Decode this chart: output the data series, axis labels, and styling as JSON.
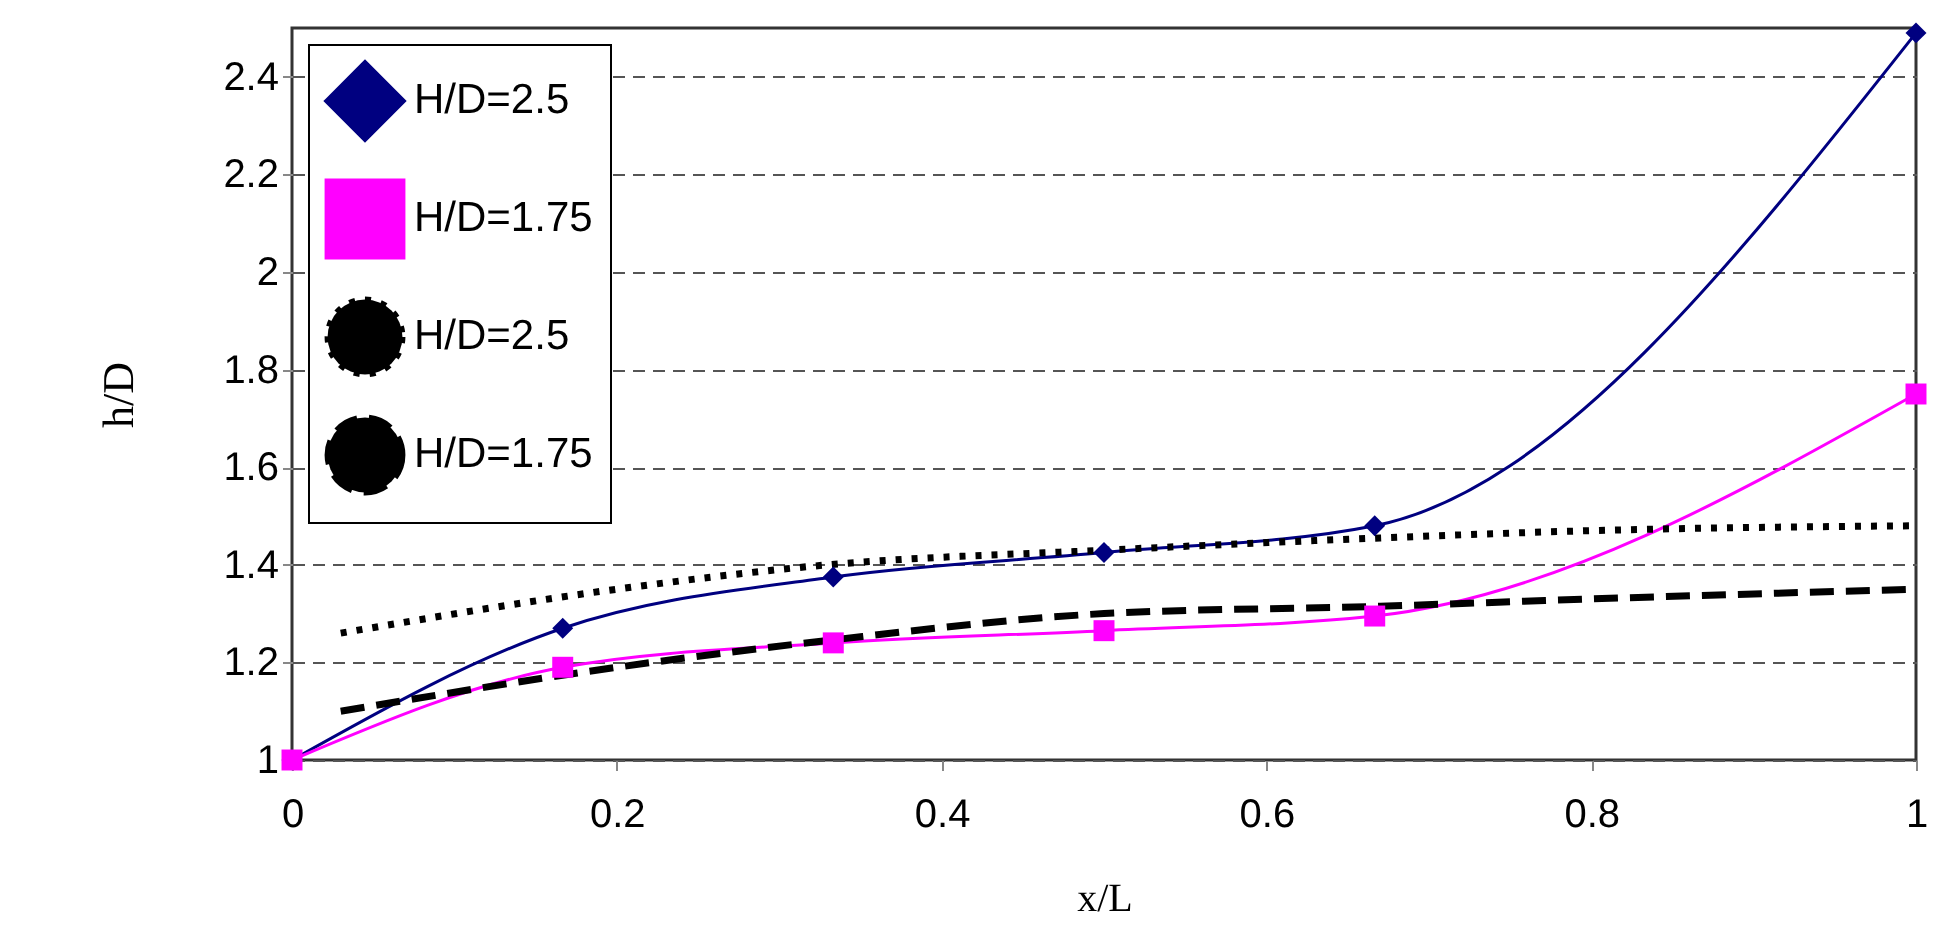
{
  "chart_data": {
    "type": "line",
    "xlabel": "x/L",
    "ylabel": "h/D",
    "xlim": [
      0,
      1
    ],
    "xticks": [
      0,
      0.2,
      0.4,
      0.6,
      0.8,
      1
    ],
    "ylim": [
      1,
      2.5
    ],
    "yticks": [
      1,
      1.2,
      1.4,
      1.6,
      1.8,
      2,
      2.2,
      2.4
    ],
    "grid": "y",
    "legend": "top left",
    "series": [
      {
        "name": "H/D=2.5",
        "color": "#000080",
        "marker": "diamond",
        "line_style": "solid",
        "x": [
          0,
          0.1667,
          0.3333,
          0.5,
          0.6667,
          1
        ],
        "values": [
          1,
          1.27,
          1.375,
          1.425,
          1.48,
          2.49
        ]
      },
      {
        "name": "H/D=1.75",
        "color": "#ff00ff",
        "marker": "square",
        "line_style": "solid",
        "x": [
          0,
          0.1667,
          0.3333,
          0.5,
          0.6667,
          1
        ],
        "values": [
          1,
          1.19,
          1.24,
          1.265,
          1.295,
          1.75
        ]
      },
      {
        "name": "H/D=2.5",
        "color": "#000000",
        "marker": "none",
        "line_style": "dotted",
        "x": [
          0.03,
          0.2,
          0.33,
          0.5,
          0.67,
          0.8,
          1
        ],
        "values": [
          1.26,
          1.35,
          1.4,
          1.43,
          1.455,
          1.47,
          1.48
        ]
      },
      {
        "name": "H/D=1.75",
        "color": "#000000",
        "marker": "none",
        "line_style": "dashed",
        "x": [
          0.03,
          0.2,
          0.33,
          0.5,
          0.67,
          0.8,
          1
        ],
        "values": [
          1.1,
          1.19,
          1.245,
          1.3,
          1.315,
          1.33,
          1.35
        ]
      }
    ]
  }
}
